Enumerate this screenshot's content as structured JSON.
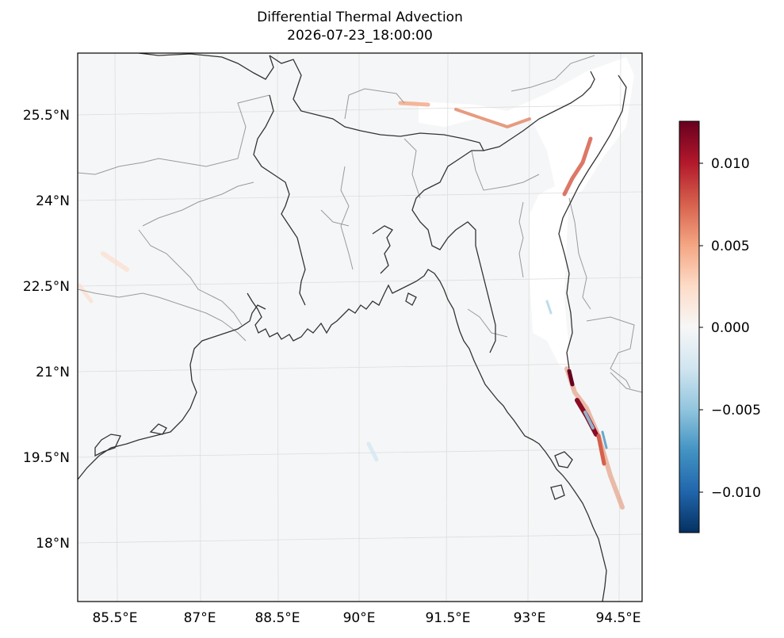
{
  "title": "Differential Thermal Advection",
  "subtitle": "2026-07-23_18:00:00",
  "map": {
    "lat_ticks": [
      "25.5°N",
      "24°N",
      "22.5°N",
      "21°N",
      "19.5°N",
      "18°N"
    ],
    "lon_ticks": [
      "85.5°E",
      "87°E",
      "88.5°E",
      "90°E",
      "91.5°E",
      "93°E",
      "94.5°E"
    ],
    "extent": {
      "lon": [
        84.9,
        94.9
      ],
      "lat": [
        17.0,
        26.1
      ]
    }
  },
  "colorbar": {
    "colormap": "RdBu_r",
    "range": [
      -0.0125,
      0.0125
    ],
    "ticks": [
      "0.010",
      "0.005",
      "0.000",
      "−0.005",
      "−0.010"
    ],
    "tick_values": [
      0.01,
      0.005,
      0.0,
      -0.005,
      -0.01
    ]
  },
  "colors": {
    "land_bg": "#f5f6f7",
    "coast": "#333333",
    "borders": "#9a9a9a",
    "grid": "#dddddd"
  }
}
